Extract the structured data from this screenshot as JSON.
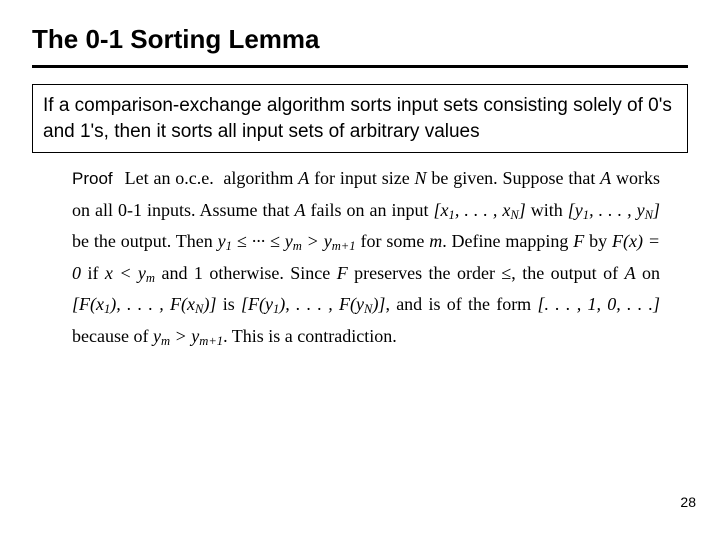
{
  "title": "The 0-1 Sorting Lemma",
  "lemma": "If a comparison-exchange algorithm sorts input sets consisting solely of 0's and 1's, then it sorts all input sets of arbitrary values",
  "proof": {
    "label": "Proof",
    "s0a": "Let an o.c.e.  algorithm ",
    "s0b": " for input size ",
    "s0c": " be given. Suppose that ",
    "s0d": " works on all 0-1 inputs. Assume that ",
    "s0e": " fails on an input ",
    "s0f": " with ",
    "s0g": " be the output. Then ",
    "s0h": " for some ",
    "s0i": ". Define mapping ",
    "s0j": " by ",
    "s0k": " if ",
    "s0l": " and 1 otherwise. Since ",
    "s0m": " preserves the order ≤, the output of ",
    "s0n": " on ",
    "s0o": " is ",
    "s0p": ", and is of the form ",
    "s0q": " because of ",
    "s0r": ". This is a contradiction.",
    "sym": {
      "A": "A",
      "N": "N",
      "F": "F",
      "m": "m",
      "x": "x",
      "y": "y",
      "xlist": "[x",
      "comma_dots": ", . . . , x",
      "close": "]",
      "ylist": "[y",
      "ycomma": ", . . . , y",
      "yle": "y",
      "le_chain_a": " ≤ ··· ≤ y",
      "gt": " > y",
      "Fx0": "F(x) = 0",
      "xlt": "x < y",
      "Fxlist_a": "[F(x",
      "Fxlist_b": "), . . . , F(x",
      "Fxlist_c": ")]",
      "Fylist_a": "[F(y",
      "Fylist_b": "), . . . , F(y",
      "Fylist_c": ")]",
      "dots_pattern": "[. . . , 1, 0, . . .]",
      "one": "1",
      "mp1": "m+1",
      "Nsym": "N"
    }
  },
  "page": "28",
  "colors": {
    "text": "#000000",
    "bg": "#ffffff"
  }
}
